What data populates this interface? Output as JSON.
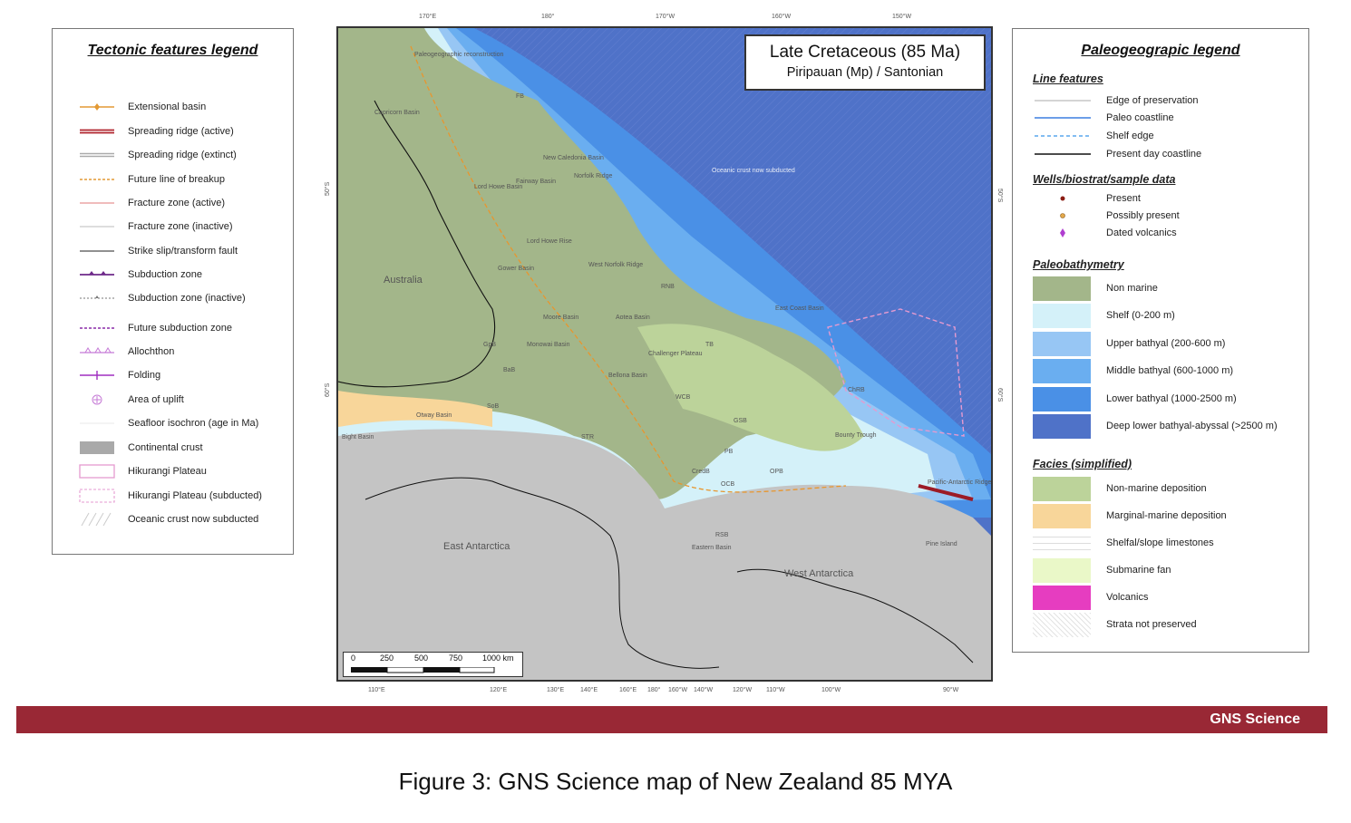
{
  "tectonic_legend": {
    "title": "Tectonic features legend",
    "items": [
      {
        "label": "Extensional basin",
        "icon": "extensional-basin-icon"
      },
      {
        "label": "Spreading ridge (active)",
        "icon": "spreading-ridge-active-icon"
      },
      {
        "label": "Spreading ridge (extinct)",
        "icon": "spreading-ridge-extinct-icon"
      },
      {
        "label": "Future line of breakup",
        "icon": "future-breakup-icon"
      },
      {
        "label": "Fracture zone (active)",
        "icon": "fracture-zone-active-icon"
      },
      {
        "label": "Fracture zone (inactive)",
        "icon": "fracture-zone-inactive-icon"
      },
      {
        "label": "Strike slip/transform fault",
        "icon": "strike-slip-icon"
      },
      {
        "label": "Subduction zone",
        "icon": "subduction-zone-icon"
      },
      {
        "label": "Subduction zone (inactive)",
        "icon": "subduction-zone-inactive-icon"
      },
      {
        "label": "Future subduction zone",
        "icon": "future-subduction-icon"
      },
      {
        "label": "Allochthon",
        "icon": "allochthon-icon"
      },
      {
        "label": "Folding",
        "icon": "folding-icon"
      },
      {
        "label": "Area of uplift",
        "icon": "uplift-icon"
      },
      {
        "label": "Seafloor isochron (age in Ma)",
        "icon": "isochron-icon"
      },
      {
        "label": "Continental crust",
        "icon": "continental-crust-icon"
      },
      {
        "label": "Hikurangi Plateau",
        "icon": "hikurangi-plateau-icon"
      },
      {
        "label": "Hikurangi Plateau (subducted)",
        "icon": "hikurangi-subducted-icon"
      },
      {
        "label": "Oceanic crust now subducted",
        "icon": "oceanic-subducted-icon"
      }
    ]
  },
  "paleo_legend": {
    "title": "Paleogeograpic legend",
    "line_features": {
      "title": "Line features",
      "items": [
        "Edge of preservation",
        "Paleo coastline",
        "Shelf edge",
        "Present day coastline"
      ]
    },
    "wells": {
      "title": "Wells/biostrat/sample data",
      "items": [
        "Present",
        "Possibly present",
        "Dated volcanics"
      ]
    },
    "bathymetry": {
      "title": "Paleobathymetry",
      "items": [
        {
          "label": "Non marine",
          "color": "#a3b68a"
        },
        {
          "label": "Shelf (0-200 m)",
          "color": "#d4f1f9"
        },
        {
          "label": "Upper bathyal (200-600 m)",
          "color": "#97c6f4"
        },
        {
          "label": "Middle bathyal (600-1000 m)",
          "color": "#6aaef0"
        },
        {
          "label": "Lower bathyal (1000-2500 m)",
          "color": "#4a90e6"
        },
        {
          "label": "Deep lower bathyal-abyssal (>2500 m)",
          "color": "#4f72c8"
        }
      ]
    },
    "facies": {
      "title": "Facies (simplified)",
      "items": [
        {
          "label": "Non-marine deposition",
          "color": "#bcd39a"
        },
        {
          "label": "Marginal-marine deposition",
          "color": "#f8d69a"
        },
        {
          "label": "Shelfal/slope limestones",
          "color": "#ffffff"
        },
        {
          "label": "Submarine fan",
          "color": "#eaf8c8"
        },
        {
          "label": "Volcanics",
          "color": "#e63dc0"
        },
        {
          "label": "Strata not preserved",
          "color": "#eeeeee"
        }
      ]
    }
  },
  "map": {
    "title": "Late Cretaceous (85 Ma)",
    "subtitle": "Piripauan (Mp) / Santonian",
    "labels": {
      "australia": "Australia",
      "east_antarctica": "East Antarctica",
      "west_antarctica": "West Antarctica",
      "oceanic": "Oceanic crust now subducted",
      "pine_island": "Pine Island",
      "capricorn": "Capricorn Basin",
      "str": "STR",
      "wcb": "WCB",
      "tb": "TB",
      "otway": "Otway Basin",
      "bight": "Bight Basin",
      "sob": "SoB",
      "bab": "BaB",
      "gpb": "GpB",
      "pb": "PB",
      "ocb": "OCB",
      "opb": "OPB",
      "gsb": "GSB",
      "chrb": "ChRB",
      "rnb": "RNB",
      "fb": "FB",
      "tasman": "Aotea Basin",
      "moore": "Moore Basin",
      "monowai": "Monowai Basin",
      "challenger": "Challenger Plateau",
      "bellona": "Bellona Basin",
      "bounty": "Bounty Trough",
      "east_coast": "East Coast Basin",
      "pacific_antarctic": "Pacific-Antarctic Ridge",
      "west_norfolk": "West Norfolk Ridge",
      "new_caledonia": "New Caledonia Basin",
      "norfolk_ridge": "Norfolk Ridge",
      "fairway": "Fairway Basin",
      "lord_howe": "Lord Howe Rise",
      "gower": "Gower Basin",
      "middleton": "Lord Howe Basin",
      "ross": "RSB",
      "eastern_basin": "Eastern Basin",
      "credo": "CredB",
      "breakup": "Paleogeographic reconstruction"
    },
    "top_degrees": [
      "170°E",
      "180°",
      "170°W",
      "160°W",
      "150°W"
    ],
    "side_degrees": [
      "50°S",
      "60°S"
    ],
    "bottom_degrees": [
      "110°E",
      "120°E",
      "130°E",
      "140°E",
      "160°E",
      "180°",
      "160°W",
      "140°W",
      "120°W",
      "110°W",
      "100°W",
      "90°W"
    ],
    "scale": {
      "ticks": [
        "0",
        "250",
        "500",
        "750",
        "1000 km"
      ]
    }
  },
  "footer": {
    "brand": "GNS Science"
  },
  "caption": "Figure 3: GNS Science map of New Zealand 85 MYA"
}
